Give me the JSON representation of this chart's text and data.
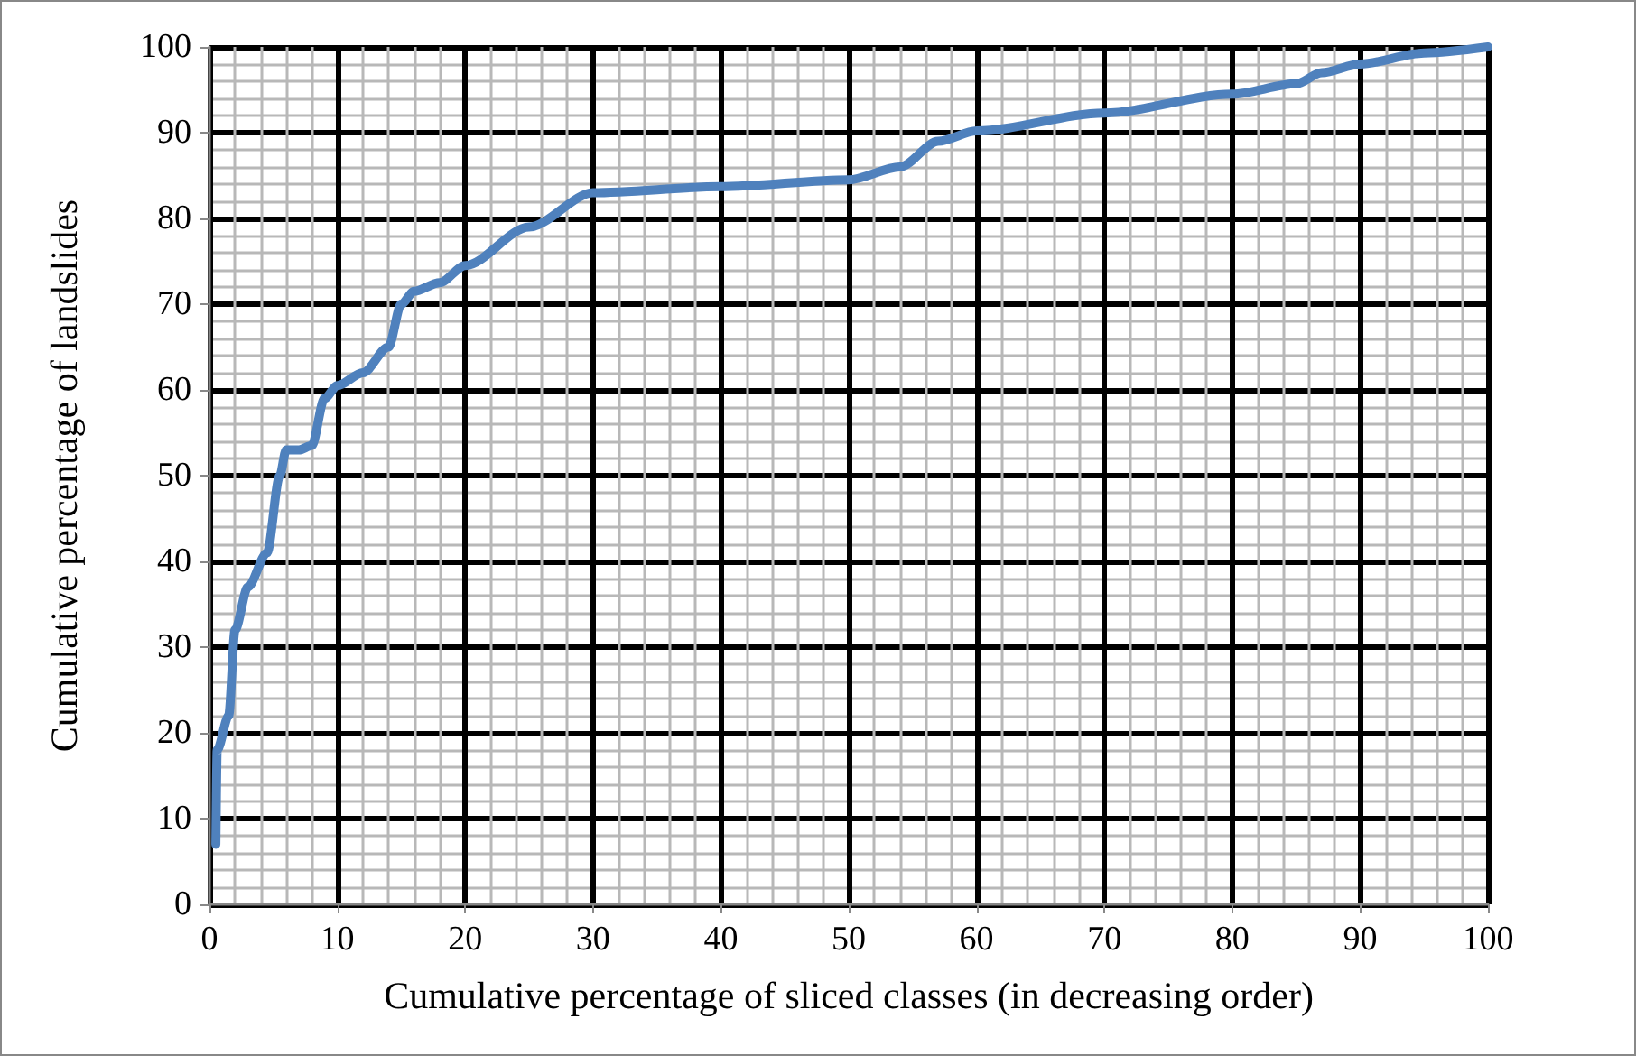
{
  "chart_data": {
    "type": "line",
    "xlabel": "Cumulative percentage of sliced classes (in decreasing order)",
    "ylabel": "Cumulative percentage of landslides",
    "x": [
      0.5,
      0.6,
      1.5,
      2,
      3,
      4.5,
      5.5,
      6,
      7,
      8,
      9,
      10,
      12,
      14,
      15,
      16,
      18,
      20,
      25,
      30,
      40,
      50,
      54,
      57,
      60,
      70,
      80,
      85,
      87,
      90,
      95,
      100
    ],
    "series": [
      {
        "color": "#4f81bd",
        "values": [
          7,
          18,
          22,
          32,
          37,
          41,
          50,
          53,
          53,
          53.5,
          59,
          60.5,
          62,
          65,
          70,
          71.5,
          72.5,
          74.5,
          79,
          83,
          83.7,
          84.5,
          86,
          89,
          90.2,
          92.3,
          94.5,
          95.7,
          97,
          98,
          99.3,
          100
        ]
      }
    ],
    "xlim": [
      0,
      100
    ],
    "xticks": [
      0,
      10,
      20,
      30,
      40,
      50,
      60,
      70,
      80,
      90,
      100
    ],
    "ylim": [
      0,
      100
    ],
    "yticks": [
      0,
      10,
      20,
      30,
      40,
      50,
      60,
      70,
      80,
      90,
      100
    ],
    "grid": true,
    "marker": "none",
    "line_style": "solid"
  }
}
